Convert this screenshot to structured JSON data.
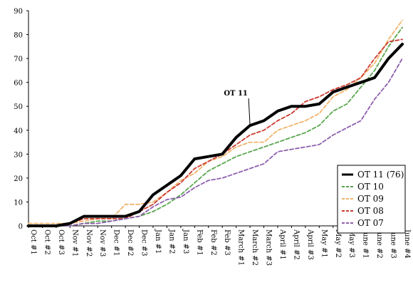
{
  "chart_data": {
    "type": "line",
    "x": [
      "Oct #1",
      "Oct #2",
      "Oct #3",
      "Nov #1",
      "Nov #2",
      "Nov #3",
      "Dec #1",
      "Dec #2",
      "Dec #3",
      "Jan #1",
      "Jan #2",
      "Jan #3",
      "Feb #1",
      "Feb #2",
      "Feb #3",
      "March #1",
      "March #2",
      "March #3",
      "April #1",
      "April #2",
      "April #3",
      "May #1",
      "May #2",
      "May #3",
      "June #1",
      "June #2",
      "June #3",
      "June #4"
    ],
    "ylim": [
      0,
      90
    ],
    "yticks": [
      0,
      10,
      20,
      30,
      40,
      50,
      60,
      70,
      80,
      90
    ],
    "grid": false,
    "legend_position": "bottom-right",
    "series": [
      {
        "name": "OT 11 (76)",
        "color": "#000000",
        "style": "solid",
        "values": [
          0,
          0,
          0,
          1,
          4,
          4,
          4,
          4,
          6,
          13,
          17,
          21,
          28,
          29,
          30,
          37,
          42,
          44,
          48,
          50,
          50,
          51,
          56,
          58,
          60,
          62,
          70,
          76
        ]
      },
      {
        "name": "OT 10",
        "color": "#5aa64f",
        "style": "dashed",
        "values": [
          0,
          0,
          0,
          0,
          1,
          2,
          2,
          3,
          4,
          6,
          9,
          13,
          18,
          23,
          26,
          29,
          31,
          33,
          35,
          37,
          39,
          42,
          48,
          51,
          58,
          65,
          75,
          83
        ]
      },
      {
        "name": "OT 09",
        "color": "#f0b46c",
        "style": "dashed",
        "values": [
          1,
          1,
          1,
          1,
          2,
          3,
          3,
          9,
          9,
          10,
          14,
          19,
          22,
          27,
          29,
          33,
          35,
          35,
          40,
          42,
          44,
          47,
          54,
          57,
          62,
          68,
          78,
          86
        ]
      },
      {
        "name": "OT 08",
        "color": "#cc3b30",
        "style": "dashed",
        "values": [
          0,
          0,
          0,
          1,
          3,
          3,
          3,
          3,
          6,
          9,
          14,
          18,
          24,
          27,
          30,
          34,
          38,
          40,
          44,
          47,
          52,
          54,
          57,
          59,
          62,
          70,
          77,
          78
        ]
      },
      {
        "name": "OT 07",
        "color": "#8e5fae",
        "style": "dashed",
        "values": [
          0,
          0,
          0,
          0,
          1,
          1,
          2,
          3,
          4,
          8,
          11,
          12,
          16,
          19,
          20,
          22,
          24,
          26,
          31,
          32,
          33,
          34,
          38,
          41,
          44,
          53,
          60,
          70
        ]
      }
    ],
    "annotation": {
      "text": "OT 11",
      "x_index": 16,
      "y": 42
    }
  }
}
